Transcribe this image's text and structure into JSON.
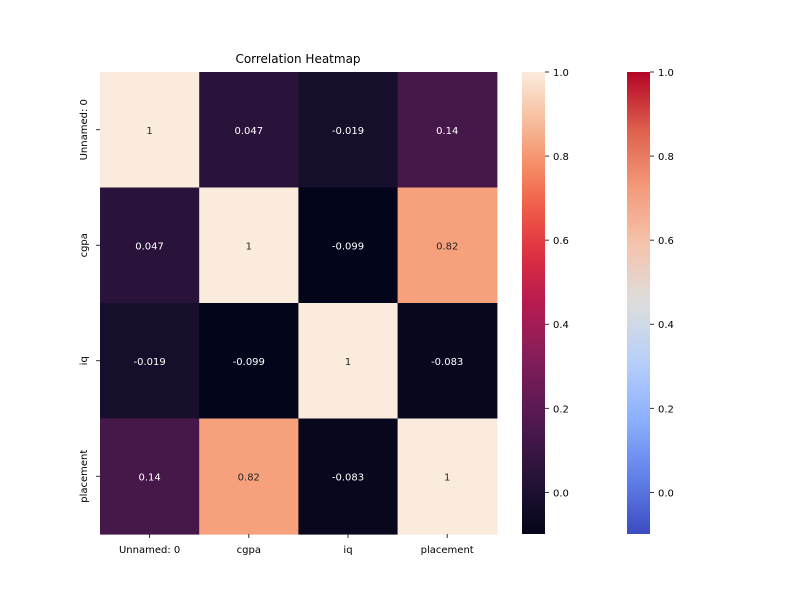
{
  "chart_data": [
    {
      "type": "heatmap",
      "title": "Correlation Heatmap",
      "x_categories": [
        "Unnamed: 0",
        "cgpa",
        "iq",
        "placement"
      ],
      "y_categories": [
        "Unnamed: 0",
        "cgpa",
        "iq",
        "placement"
      ],
      "values": [
        [
          1,
          0.047,
          -0.019,
          0.14
        ],
        [
          0.047,
          1,
          -0.099,
          0.82
        ],
        [
          -0.019,
          -0.099,
          1,
          -0.083
        ],
        [
          0.14,
          0.82,
          -0.083,
          1
        ]
      ],
      "cell_labels": [
        [
          "1",
          "0.047",
          "-0.019",
          "0.14"
        ],
        [
          "0.047",
          "1",
          "-0.099",
          "0.82"
        ],
        [
          "-0.019",
          "-0.099",
          "1",
          "-0.083"
        ],
        [
          "0.14",
          "0.82",
          "-0.083",
          "1"
        ]
      ],
      "colormap": "rocket",
      "vmin": -0.099,
      "vmax": 1,
      "grid": false
    },
    {
      "type": "colorbar",
      "colormap": "rocket",
      "range": [
        -0.099,
        1
      ],
      "tick_values": [
        0.0,
        0.2,
        0.4,
        0.6,
        0.8,
        1.0
      ],
      "tick_labels": [
        "0.0",
        "0.2",
        "0.4",
        "0.6",
        "0.8",
        "1.0"
      ]
    },
    {
      "type": "colorbar",
      "colormap": "coolwarm",
      "range": [
        -0.099,
        1
      ],
      "tick_values": [
        0.0,
        0.2,
        0.4,
        0.6,
        0.8,
        1.0
      ],
      "tick_labels": [
        "0.0",
        "0.2",
        "0.4",
        "0.6",
        "0.8",
        "1.0"
      ]
    }
  ]
}
